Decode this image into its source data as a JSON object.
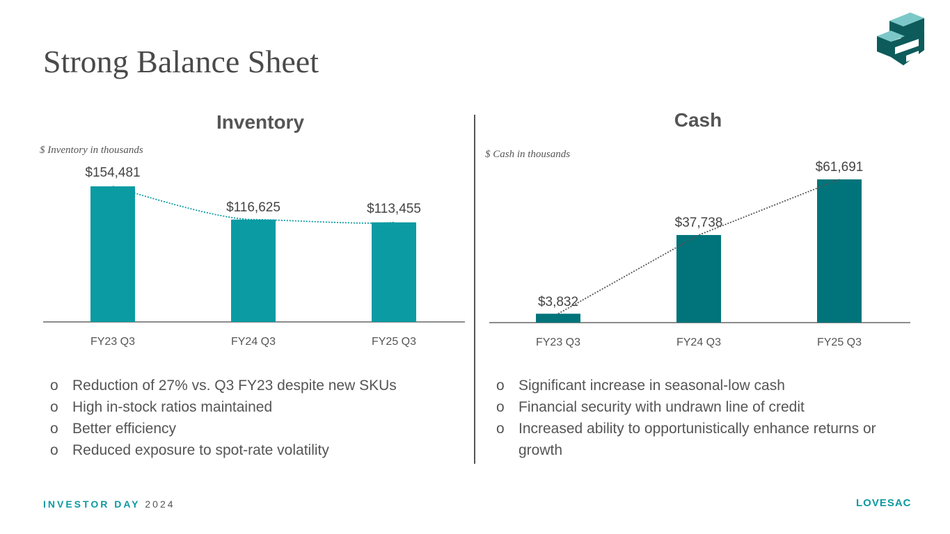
{
  "title": "Strong Balance Sheet",
  "footer": {
    "event": "INVESTOR DAY",
    "year": "2024",
    "brand": "LOVESAC"
  },
  "colors": {
    "inventory": "#0a9ba3",
    "cash": "#00747a",
    "text": "#555555"
  },
  "chart_data": [
    {
      "type": "bar",
      "title": "Inventory",
      "ylabel": "$ Inventory in thousands",
      "categories": [
        "FY23 Q3",
        "FY24 Q3",
        "FY25 Q3"
      ],
      "values": [
        154481,
        116625,
        113455
      ],
      "labels": [
        "$154,481",
        "$116,625",
        "$113,455"
      ],
      "trendline": "dotted"
    },
    {
      "type": "bar",
      "title": "Cash",
      "ylabel": "$ Cash in thousands",
      "categories": [
        "FY23 Q3",
        "FY24 Q3",
        "FY25 Q3"
      ],
      "values": [
        3832,
        37738,
        61691
      ],
      "labels": [
        "$3,832",
        "$37,738",
        "$61,691"
      ],
      "trendline": "dotted"
    }
  ],
  "bullets_left": [
    "Reduction of 27% vs. Q3 FY23 despite new SKUs",
    "High in-stock ratios maintained",
    "Better efficiency",
    "Reduced exposure to spot-rate volatility"
  ],
  "bullets_right": [
    "Significant increase in seasonal-low cash",
    "Financial security with undrawn line of credit",
    "Increased ability to opportunistically enhance returns or growth"
  ]
}
